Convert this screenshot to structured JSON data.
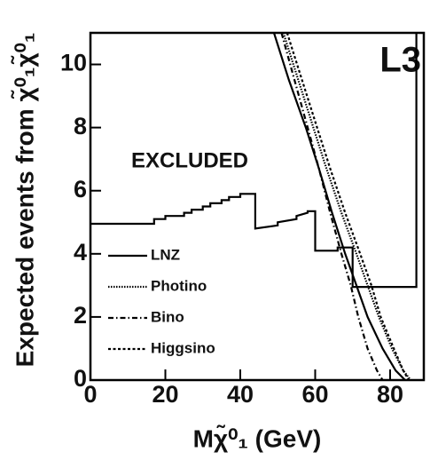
{
  "chart_data": {
    "type": "line",
    "corner_label": "L3",
    "annotation": "EXCLUDED",
    "xlabel": "Mχ̃⁰₁  (GeV)",
    "ylabel": "Expected events from χ̃⁰₁χ̃⁰₁",
    "xlim": [
      0,
      89
    ],
    "ylim": [
      0,
      11
    ],
    "xticks": [
      0,
      20,
      40,
      60,
      80
    ],
    "yticks": [
      0,
      2,
      4,
      6,
      8,
      10
    ],
    "limit": {
      "x": [
        0,
        17,
        17,
        20,
        20,
        25,
        25,
        27,
        27,
        30,
        30,
        32,
        32,
        35,
        35,
        37,
        37,
        40,
        40,
        44,
        44,
        50,
        50,
        55,
        55,
        58,
        58,
        60,
        60,
        66,
        66,
        70,
        70,
        87,
        87
      ],
      "y": [
        4.95,
        4.95,
        5.1,
        5.1,
        5.2,
        5.2,
        5.3,
        5.3,
        5.4,
        5.4,
        5.5,
        5.5,
        5.6,
        5.6,
        5.7,
        5.7,
        5.8,
        5.8,
        5.9,
        5.9,
        4.8,
        4.9,
        5.0,
        5.1,
        5.2,
        5.3,
        5.35,
        5.35,
        4.1,
        4.1,
        4.2,
        4.2,
        2.95,
        2.95,
        11
      ]
    },
    "series": [
      {
        "name": "LNZ",
        "color": "#000000",
        "dash": "none",
        "x": [
          49,
          53,
          57.5,
          61,
          64.5,
          68,
          71,
          74,
          78,
          81.5,
          84
        ],
        "values": [
          11,
          9.5,
          8,
          6.7,
          5.3,
          4,
          3,
          2,
          1,
          0.3,
          0
        ]
      },
      {
        "name": "Photino",
        "color": "#000000",
        "dash": "1.5,1.5",
        "x": [
          51.5,
          55.5,
          59.5,
          63,
          67,
          71,
          74,
          77,
          80.5,
          83.5,
          85.5
        ],
        "values": [
          11,
          9.5,
          8,
          6.7,
          5.3,
          4,
          3,
          2,
          1,
          0.3,
          0
        ]
      },
      {
        "name": "Bino",
        "color": "#000000",
        "dash": "6,3,1.5,3",
        "x": [
          51,
          54.5,
          58,
          61,
          64,
          67,
          69.5,
          71.5,
          74,
          76.5,
          78
        ],
        "values": [
          11,
          9.5,
          8,
          6.7,
          5.3,
          4,
          3,
          2,
          1,
          0.3,
          0
        ]
      },
      {
        "name": "Higgsino",
        "color": "#000000",
        "dash": "3,2.5",
        "x": [
          52.5,
          56.5,
          60.5,
          64,
          68,
          72,
          75,
          77.5,
          81,
          83.5,
          85
        ],
        "values": [
          11,
          9.5,
          8,
          6.7,
          5.3,
          4,
          3,
          2,
          1,
          0.3,
          0
        ]
      }
    ]
  }
}
